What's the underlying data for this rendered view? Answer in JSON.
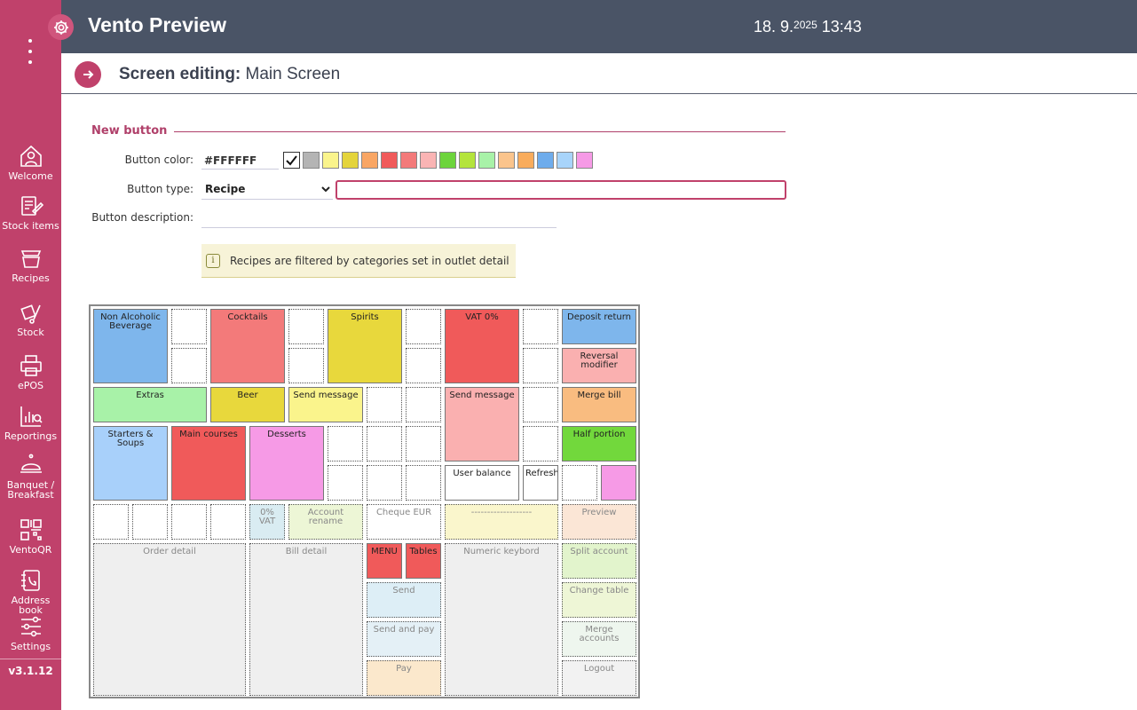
{
  "app": {
    "title": "Vento Preview",
    "date_main": "18. 9.",
    "date_year": "2025",
    "time": "13:43",
    "version": "v3.1.12"
  },
  "sidebar": {
    "items": [
      {
        "label": "Welcome",
        "icon": "home-user-icon"
      },
      {
        "label": "Stock items",
        "icon": "stock-items-icon"
      },
      {
        "label": "Recipes",
        "icon": "recipes-icon"
      },
      {
        "label": "Stock",
        "icon": "stock-icon"
      },
      {
        "label": "ePOS",
        "icon": "printer-icon"
      },
      {
        "label": "Reportings",
        "icon": "reportings-icon"
      },
      {
        "label": "Banquet / Breakfast",
        "icon": "cloche-icon"
      },
      {
        "label": "VentoQR",
        "icon": "qr-icon"
      },
      {
        "label": "Address book",
        "icon": "address-book-icon"
      },
      {
        "label": "Settings",
        "icon": "sliders-icon"
      }
    ]
  },
  "header": {
    "title_bold": "Screen editing:",
    "title_rest": "Main Screen"
  },
  "form": {
    "section_title": "New button",
    "color_label": "Button color:",
    "color_value": "#FFFFFF",
    "colors": [
      "#FFFFFF",
      "#B4B4B4",
      "#FAF48C",
      "#E4D43C",
      "#F9A664",
      "#F05A5A",
      "#F37A7A",
      "#FAB4B4",
      "#6DD43C",
      "#B4E43C",
      "#A8F2A8",
      "#FAC48C",
      "#F9AC5C",
      "#6EACEC",
      "#A8D4FA",
      "#F69AE6"
    ],
    "type_label": "Button type:",
    "type_value": "Recipe",
    "desc_label": "Button description:",
    "info_icon": "i",
    "info_text": "Recipes are filtered by categories set in outlet detail"
  },
  "grid": {
    "buttons": [
      {
        "label": "Non Alcoholic Beverage",
        "color": "#7EB6EC"
      },
      {
        "label": "Cocktails",
        "color": "#F37A7A"
      },
      {
        "label": "Spirits",
        "color": "#E8D83C"
      },
      {
        "label": "VAT 0%",
        "color": "#F05A5A"
      },
      {
        "label": "Deposit return",
        "color": "#7EB6EC"
      },
      {
        "label": "Reversal modifier",
        "color": "#FAB0B0"
      },
      {
        "label": "Extras",
        "color": "#A8F2A8"
      },
      {
        "label": "Beer",
        "color": "#E8D83C"
      },
      {
        "label": "Send message",
        "color": "#FAF48C"
      },
      {
        "label": "Send message",
        "color": "#FAB0B0"
      },
      {
        "label": "Merge bill",
        "color": "#F9BC80"
      },
      {
        "label": "Starters & Soups",
        "color": "#A8D0FA"
      },
      {
        "label": "Main courses",
        "color": "#F05A5A"
      },
      {
        "label": "Desserts",
        "color": "#F69AE6"
      },
      {
        "label": "Half portion",
        "color": "#72D83C"
      },
      {
        "label": "User balance",
        "color": "#FFFFFF"
      },
      {
        "label": "Refresh",
        "color": "#FFFFFF"
      },
      {
        "label": "",
        "color": "#F69AE6"
      },
      {
        "label": "0% VAT",
        "color": "#D9ECF2"
      },
      {
        "label": "Account rename",
        "color": "#EDF6D6"
      },
      {
        "label": "Cheque EUR",
        "color": "#FFFFFF"
      },
      {
        "label": "-------------------",
        "color": "#FAF6CC"
      },
      {
        "label": "Preview",
        "color": "#FBE6D6"
      },
      {
        "label": "Order detail",
        "color": "#EFEFEF"
      },
      {
        "label": "Bill detail",
        "color": "#EFEFEF"
      },
      {
        "label": "MENU",
        "color": "#F05A5A"
      },
      {
        "label": "Tables",
        "color": "#F05A5A"
      },
      {
        "label": "Numeric keybord",
        "color": "#EFEFEF"
      },
      {
        "label": "Split account",
        "color": "#E2F4CC"
      },
      {
        "label": "Send",
        "color": "#DDEEF6"
      },
      {
        "label": "Change table",
        "color": "#EEF6D6"
      },
      {
        "label": "Send and pay",
        "color": "#E4F0F6"
      },
      {
        "label": "Merge accounts",
        "color": "#EEF6EE"
      },
      {
        "label": "Pay",
        "color": "#FBE8CC"
      },
      {
        "label": "Logout",
        "color": "#F2F2F2"
      }
    ]
  }
}
